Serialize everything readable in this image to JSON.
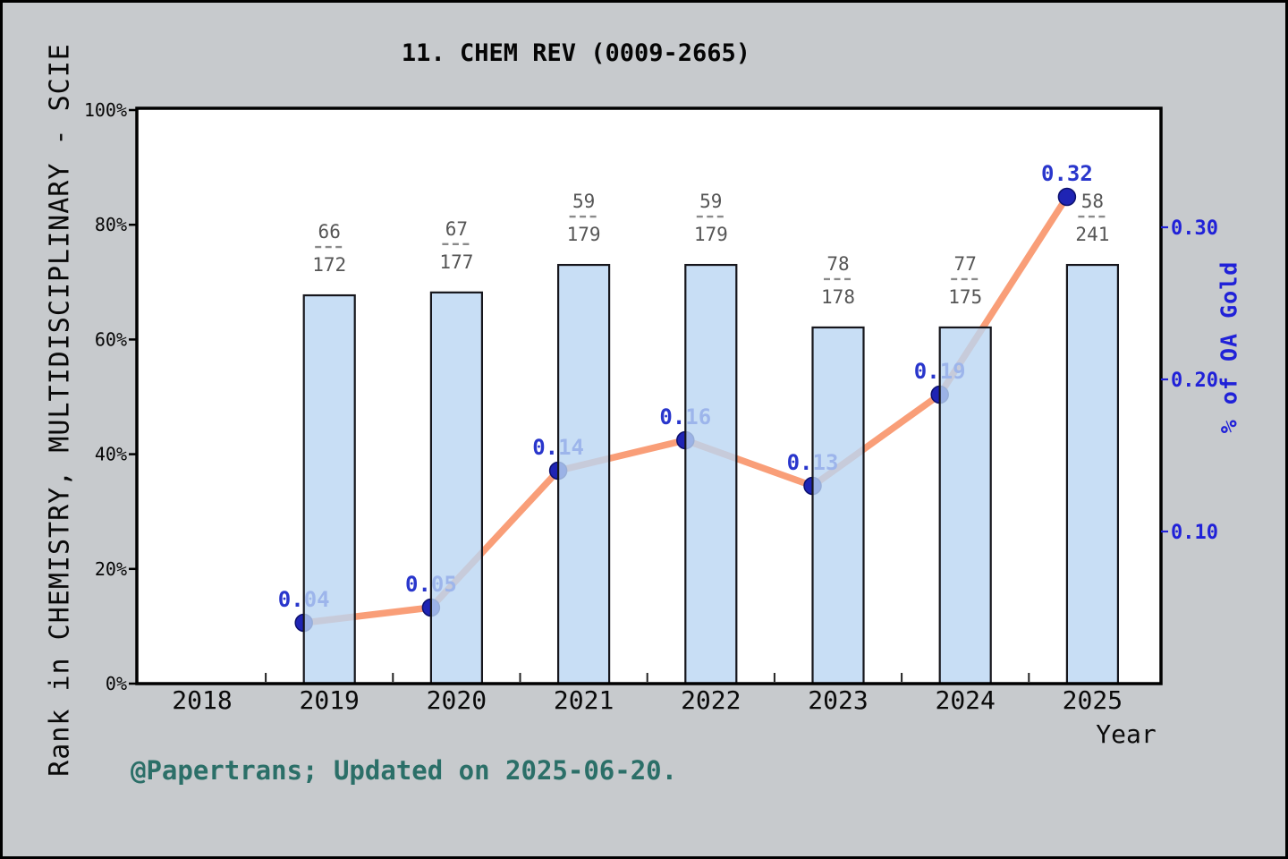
{
  "footer": {
    "text": "@Papertrans; Updated on 2025-06-20."
  },
  "chart_data": {
    "type": "bar+line",
    "title": "11. CHEM REV (0009-2665)",
    "categories": [
      2019,
      2020,
      2021,
      2022,
      2023,
      2024,
      2025
    ],
    "x_axis": {
      "label": "Year",
      "tick_labels": [
        "2018",
        "2019",
        "2020",
        "2021",
        "2022",
        "2023",
        "2024",
        "2025"
      ]
    },
    "left_axis": {
      "label": "Rank in CHEMISTRY, MULTIDISCIPLINARY - SCIE",
      "tick_labels": [
        "0%",
        "20%",
        "40%",
        "60%",
        "80%",
        "100%"
      ],
      "tick_values": [
        0,
        20,
        40,
        60,
        80,
        100
      ],
      "range": [
        0,
        100
      ]
    },
    "right_axis": {
      "label": "% of OA Gold",
      "tick_labels": [
        "0.10",
        "0.20",
        "0.30"
      ],
      "tick_values": [
        0.1,
        0.2,
        0.3
      ],
      "range": [
        0,
        0.38
      ]
    },
    "bars": {
      "name": "rank-percentile-bars",
      "values_percent": [
        67.7,
        68.2,
        73.0,
        73.0,
        62.1,
        62.1,
        73.0
      ],
      "rank_labels": [
        {
          "numerator": "66",
          "denominator": "172"
        },
        {
          "numerator": "67",
          "denominator": "177"
        },
        {
          "numerator": "59",
          "denominator": "179"
        },
        {
          "numerator": "59",
          "denominator": "179"
        },
        {
          "numerator": "78",
          "denominator": "178"
        },
        {
          "numerator": "77",
          "denominator": "175"
        },
        {
          "numerator": "58",
          "denominator": "241"
        }
      ]
    },
    "line": {
      "name": "oa-gold-line",
      "values": [
        0.04,
        0.05,
        0.14,
        0.16,
        0.13,
        0.19,
        0.32
      ],
      "point_labels": [
        "0.04",
        "0.05",
        "0.14",
        "0.16",
        "0.13",
        "0.19",
        "0.32"
      ]
    },
    "colors": {
      "bar_fill": "#bad6f3",
      "bar_border": "#16161c",
      "line": "#f99e78",
      "marker": "#1f24b4",
      "marker_edge": "#0d116e",
      "point_label": "#2936cc",
      "right_axis": "#2021d8",
      "rank_label": "#555555",
      "footer": "#2b6f68",
      "background": "#c7cacd"
    },
    "legend": null,
    "grid": false
  }
}
